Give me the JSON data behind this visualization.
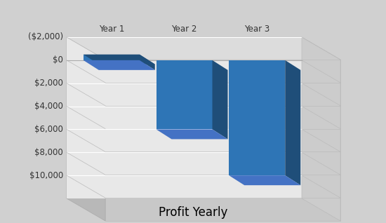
{
  "title": "Profit Yearly",
  "categories": [
    "Year 1",
    "Year 2",
    "Year 3"
  ],
  "values": [
    -500,
    6000,
    10000
  ],
  "bar_color_front": "#2E75B6",
  "bar_color_side": "#1F4E79",
  "bar_color_top": "#4472C4",
  "wall_color": "#C0C0C0",
  "floor_color": "#D8D8D8",
  "bg_color": "#D0D0D0",
  "plot_bg_color": "#E8E8E8",
  "grid_color": "#FFFFFF",
  "ylim": [
    -2000,
    12000
  ],
  "yticks": [
    -2000,
    0,
    2000,
    4000,
    6000,
    8000,
    10000
  ],
  "ytick_labels": [
    "($2,000)",
    "$0",
    "$2,000",
    "$4,000",
    "$6,000",
    "$8,000",
    "$10,000"
  ],
  "title_fontsize": 12,
  "tick_fontsize": 8.5
}
